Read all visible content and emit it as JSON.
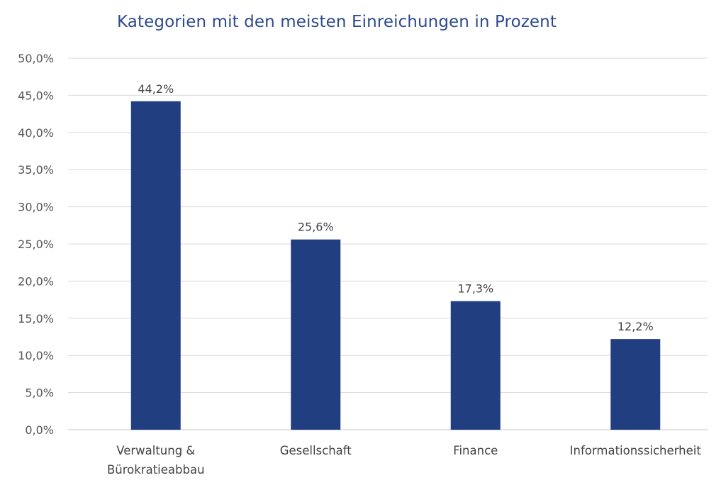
{
  "chart_data": {
    "type": "bar",
    "title": "Kategorien mit den meisten Einreichungen in Prozent",
    "categories": [
      [
        "Verwaltung &",
        "Bürokratieabbau"
      ],
      [
        "Gesellschaft"
      ],
      [
        "Finance"
      ],
      [
        "Informationssicherheit"
      ]
    ],
    "values": [
      44.2,
      25.6,
      17.3,
      12.2
    ],
    "data_labels": [
      "44,2%",
      "25,6%",
      "17,3%",
      "12,2%"
    ],
    "y_ticks": [
      "0,0%",
      "5,0%",
      "10,0%",
      "15,0%",
      "20,0%",
      "25,0%",
      "30,0%",
      "35,0%",
      "40,0%",
      "45,0%",
      "50,0%"
    ],
    "ylim": [
      0,
      50
    ],
    "y_step": 5,
    "grid": true,
    "legend": "none",
    "bar_color": "#213f80"
  }
}
